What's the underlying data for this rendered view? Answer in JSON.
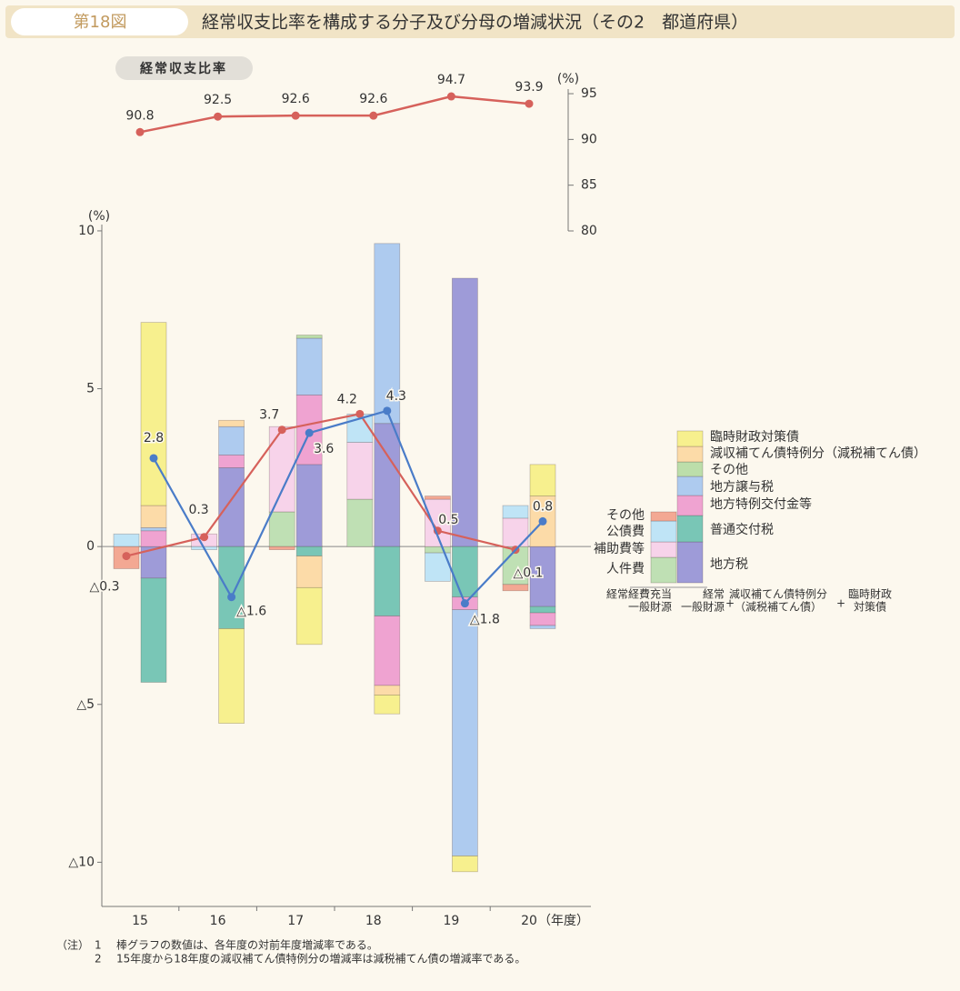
{
  "header": {
    "figure": "第18図",
    "title": "経常収支比率を構成する分子及び分母の増減状況（その2　都道府県）"
  },
  "chart_data": [
    {
      "type": "line",
      "title": "経常収支比率",
      "unit": "(%)",
      "values": [
        90.8,
        92.5,
        92.6,
        92.6,
        94.7,
        93.9
      ],
      "color": "#d6615b",
      "ylim": [
        80,
        95.5
      ],
      "yticks": [
        80,
        85,
        90,
        95
      ]
    },
    {
      "type": "bar",
      "stacked": true,
      "unit": "(%)",
      "categories": [
        "15",
        "16",
        "17",
        "18",
        "19",
        "20"
      ],
      "x_unit": "（年度）",
      "ylim": [
        -11.4,
        10.2
      ],
      "yticks": [
        10,
        5,
        0,
        {
          "value": -5,
          "label": "△5"
        },
        {
          "value": -10,
          "label": "△10"
        }
      ],
      "zero_line": true,
      "bar_groups": [
        {
          "label_lines": [
            "経常経費充当",
            "一般財源"
          ],
          "series": [
            {
              "name": "人件費",
              "color": "#bfe0b4",
              "values": [
                0,
                0,
                1.1,
                1.5,
                -0.2,
                -1.2
              ]
            },
            {
              "name": "補助費等",
              "color": "#f7d3ea",
              "values": [
                0,
                0.4,
                2.7,
                1.8,
                1.5,
                0.9
              ]
            },
            {
              "name": "公債費",
              "color": "#bfe4f6",
              "values": [
                0.4,
                -0.1,
                0,
                0.9,
                -0.9,
                0.4
              ]
            },
            {
              "name": "その他",
              "color": "#f3a893",
              "values": [
                -0.7,
                0,
                -0.1,
                0,
                0.1,
                -0.2
              ]
            }
          ],
          "line": {
            "color": "#d6615b",
            "values": [
              -0.3,
              0.3,
              3.7,
              4.2,
              0.5,
              -0.1
            ],
            "value_labels": [
              "△0.3",
              "0.3",
              "3.7",
              "4.2",
              "0.5",
              "△0.1"
            ]
          }
        },
        {
          "label_lines": [
            "経常",
            "一般財源"
          ],
          "series": [
            {
              "name": "地方税",
              "color": "#9e9bd8",
              "values": [
                -1.0,
                2.5,
                2.6,
                3.9,
                8.5,
                -1.9
              ]
            },
            {
              "name": "普通交付税",
              "color": "#79c6b6",
              "values": [
                -3.3,
                -2.6,
                -0.3,
                -2.2,
                -1.6,
                -0.2
              ]
            },
            {
              "name": "地方特例交付金等",
              "color": "#efa3d1",
              "values": [
                0.5,
                0.4,
                2.2,
                -2.2,
                -0.4,
                -0.4
              ]
            },
            {
              "name": "地方譲与税",
              "color": "#aecbef",
              "values": [
                0.1,
                0.9,
                1.8,
                5.7,
                -7.8,
                -0.1
              ]
            },
            {
              "name": "その他",
              "color": "#bcdeaa",
              "values": [
                0,
                0,
                0.1,
                0,
                0,
                0
              ]
            },
            {
              "name": "減収補てん債特例分（減税補てん債）",
              "color": "#fcdba8",
              "values": [
                0.7,
                0.2,
                -1.0,
                -0.3,
                0,
                1.6
              ]
            },
            {
              "name": "臨時財政対策債",
              "color": "#f7f08e",
              "values": [
                5.8,
                -3.0,
                -1.8,
                -0.6,
                -0.5,
                1.0
              ]
            }
          ],
          "line": {
            "color": "#4a7cc8",
            "values": [
              2.8,
              -1.6,
              3.6,
              4.3,
              -1.8,
              0.8
            ],
            "value_labels": [
              "2.8",
              "△1.6",
              "3.6",
              "4.3",
              "△1.8",
              "0.8"
            ]
          }
        }
      ],
      "legend_notes": [
        {
          "lines": [
            "+"
          ]
        },
        {
          "lines": [
            "減収補てん債特例分",
            "（減税補てん債）"
          ]
        },
        {
          "lines": [
            "+"
          ]
        },
        {
          "lines": [
            "臨時財政",
            "対策債"
          ]
        }
      ]
    }
  ],
  "notes": {
    "label": "（注）",
    "items": [
      {
        "num": "1",
        "text": "棒グラフの数値は、各年度の対前年度増減率である。"
      },
      {
        "num": "2",
        "text": "15年度から18年度の減収補てん債特例分の増減率は減税補てん債の増減率である。"
      }
    ]
  }
}
